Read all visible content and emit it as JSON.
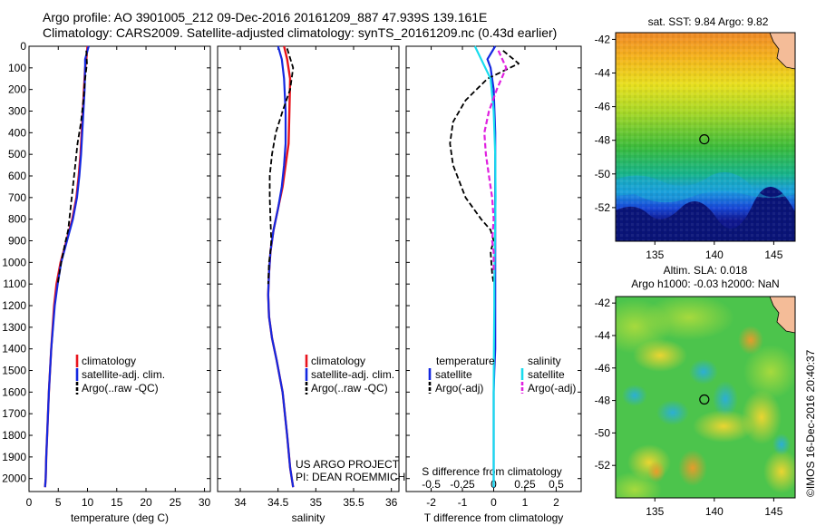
{
  "header": {
    "line1": "Argo profile: AO 3901005_212 09-Dec-2016 20161209_887 47.939S 139.161E",
    "line2": "Climatology: CARS2009. Satellite-adjusted climatology: synTS_20161209.nc (0.43d earlier)"
  },
  "credits": {
    "line1": "US ARGO PROJECT",
    "line2": "PI: DEAN ROEMMICH"
  },
  "stamp": "©IMOS 16-Dec-2016 20:40:37",
  "colors": {
    "climatology": "#e8141d",
    "satellite": "#1428e0",
    "argo": "#000000",
    "cyan": "#18dcee",
    "magenta": "#e020e0"
  },
  "chart_data": [
    {
      "type": "line",
      "xlabel": "temperature (deg C)",
      "ylabel": "",
      "xlim": [
        0,
        31
      ],
      "ylim": [
        2060,
        0
      ],
      "xticks": [
        0,
        5,
        10,
        15,
        20,
        25,
        30
      ],
      "yticks": [
        0,
        100,
        200,
        300,
        400,
        500,
        600,
        700,
        800,
        900,
        1000,
        1100,
        1200,
        1300,
        1400,
        1500,
        1600,
        1700,
        1800,
        1900,
        2000
      ],
      "legend": [
        "climatology",
        "satellite-adj. clim.",
        "Argo(..raw -QC)"
      ],
      "series": [
        {
          "name": "climatology",
          "style": "red",
          "x": [
            10.0,
            9.8,
            9.6,
            9.4,
            9.2,
            9.0,
            8.8,
            8.5,
            8.1,
            7.4,
            6.4,
            5.4,
            4.7,
            4.3,
            3.8,
            3.4,
            3.1,
            2.95,
            2.85,
            2.75
          ],
          "y": [
            0,
            60,
            100,
            200,
            300,
            400,
            500,
            600,
            700,
            800,
            900,
            1000,
            1100,
            1200,
            1400,
            1600,
            1800,
            1900,
            2000,
            2040
          ]
        },
        {
          "name": "satellite-adj. clim.",
          "style": "blue",
          "x": [
            10.2,
            9.6,
            9.6,
            9.5,
            9.3,
            9.1,
            8.9,
            8.6,
            8.2,
            7.5,
            6.5,
            5.5,
            4.9,
            4.4,
            3.8,
            3.4,
            3.1,
            2.95,
            2.85,
            2.75
          ],
          "y": [
            0,
            60,
            100,
            200,
            300,
            400,
            500,
            600,
            700,
            800,
            900,
            1000,
            1100,
            1200,
            1400,
            1600,
            1800,
            1900,
            2000,
            2040
          ]
        },
        {
          "name": "Argo(..raw -QC)",
          "style": "dash",
          "x": [
            9.8,
            9.9,
            9.6,
            9.3,
            8.9,
            8.3,
            7.9,
            7.5,
            7.1,
            6.7,
            6.1,
            5.5,
            4.9
          ],
          "y": [
            20,
            80,
            150,
            250,
            350,
            450,
            550,
            650,
            750,
            850,
            920,
            1000,
            1100
          ]
        }
      ]
    },
    {
      "type": "line",
      "xlabel": "salinity",
      "xlim": [
        33.7,
        36.1
      ],
      "ylim": [
        2060,
        0
      ],
      "xticks": [
        34,
        34.5,
        35,
        35.5,
        36
      ],
      "legend": [
        "climatology",
        "satellite-adj. clim.",
        "Argo(..raw -QC)"
      ],
      "series": [
        {
          "name": "climatology",
          "style": "red",
          "x": [
            34.58,
            34.62,
            34.66,
            34.65,
            34.64,
            34.6,
            34.56,
            34.5,
            34.44,
            34.4,
            34.38,
            34.37,
            34.38,
            34.42,
            34.48,
            34.56,
            34.62,
            34.66,
            34.7
          ],
          "y": [
            0,
            60,
            150,
            300,
            450,
            550,
            650,
            750,
            850,
            950,
            1050,
            1150,
            1250,
            1350,
            1450,
            1600,
            1800,
            1950,
            2040
          ]
        },
        {
          "name": "satellite-adj. clim.",
          "style": "blue",
          "x": [
            34.5,
            34.55,
            34.58,
            34.6,
            34.6,
            34.58,
            34.55,
            34.5,
            34.44,
            34.4,
            34.38,
            34.37,
            34.38,
            34.42,
            34.48,
            34.56,
            34.62,
            34.66,
            34.7
          ],
          "y": [
            0,
            60,
            150,
            300,
            450,
            550,
            650,
            750,
            850,
            950,
            1050,
            1150,
            1250,
            1350,
            1450,
            1600,
            1800,
            1950,
            2040
          ]
        },
        {
          "name": "Argo(..raw -QC)",
          "style": "dash",
          "x": [
            34.62,
            34.7,
            34.66,
            34.56,
            34.47,
            34.42,
            34.39,
            34.39,
            34.4,
            34.41,
            34.4,
            34.38,
            34.37
          ],
          "y": [
            10,
            100,
            200,
            300,
            400,
            500,
            600,
            700,
            800,
            900,
            950,
            1000,
            1100
          ]
        }
      ]
    },
    {
      "type": "line",
      "xlabel": "T difference from climatology",
      "x2label": "S difference from climatology",
      "xlim": [
        -2.8,
        2.8
      ],
      "ylim": [
        2060,
        0
      ],
      "xticks": [
        -2,
        -1,
        0,
        1,
        2
      ],
      "x2ticks": [
        -0.5,
        -0.25,
        0,
        0.25,
        0.5
      ],
      "legend_headers": [
        "temperature",
        "salinity"
      ],
      "legend": [
        "satellite",
        "Argo(-adj)",
        "satellite",
        "Argo(-adj)"
      ],
      "series": [
        {
          "name": "satellite",
          "group": "temperature",
          "style": "blue",
          "x": [
            0.05,
            -0.2,
            -0.1,
            0.0,
            0.05,
            0.05,
            0.05,
            0.05,
            0.05,
            0.05,
            0.05,
            0.05,
            0.05,
            0.02,
            0.0,
            0.0,
            0.0,
            0.0
          ],
          "y": [
            0,
            60,
            100,
            200,
            400,
            600,
            800,
            900,
            1000,
            1100,
            1200,
            1300,
            1400,
            1500,
            1600,
            1800,
            2000,
            2040
          ]
        },
        {
          "name": "Argo(-adj)",
          "group": "temperature",
          "style": "dash",
          "x": [
            0.3,
            0.8,
            -0.2,
            -0.9,
            -1.3,
            -1.4,
            -1.3,
            -0.9,
            -0.4,
            -0.1,
            0.0,
            -0.1,
            -0.05,
            0.0
          ],
          "y": [
            20,
            80,
            150,
            250,
            350,
            450,
            550,
            700,
            800,
            850,
            900,
            950,
            1050,
            1100
          ]
        },
        {
          "name": "satellite",
          "group": "salinity",
          "style": "cyan",
          "x": [
            -0.6,
            -0.4,
            -0.1,
            0.0,
            0.05,
            0.06,
            0.05,
            0.04,
            0.03,
            0.02,
            0.02,
            0.01,
            0.0,
            0.0,
            0.0,
            0.0
          ],
          "y": [
            0,
            60,
            150,
            300,
            500,
            700,
            800,
            900,
            1000,
            1100,
            1200,
            1400,
            1600,
            1800,
            2000,
            2040
          ]
        },
        {
          "name": "Argo(-adj)",
          "group": "salinity",
          "style": "magenta",
          "x": [
            0.15,
            0.4,
            0.1,
            -0.15,
            -0.3,
            -0.25,
            -0.15,
            -0.05,
            0.0,
            -0.05,
            0.0,
            0.0
          ],
          "y": [
            20,
            100,
            200,
            300,
            400,
            500,
            600,
            700,
            800,
            900,
            950,
            1050
          ]
        }
      ]
    },
    {
      "type": "heatmap",
      "title": "sat. SST: 9.84  Argo: 9.82",
      "xticks": [
        135,
        140,
        145
      ],
      "yticks": [
        -42,
        -44,
        -46,
        -48,
        -50,
        -52
      ],
      "xlim": [
        131.7,
        146.8
      ],
      "ylim": [
        -54,
        -41.6
      ],
      "marker": {
        "x": 139.16,
        "y": -47.94
      }
    },
    {
      "type": "heatmap",
      "title_line1": "Altim. SLA: 0.018",
      "title_line2": "Argo h1000: -0.03 h2000: NaN",
      "xticks": [
        135,
        140,
        145
      ],
      "yticks": [
        -42,
        -44,
        -46,
        -48,
        -50,
        -52
      ],
      "xlim": [
        131.7,
        146.8
      ],
      "ylim": [
        -54,
        -41.6
      ],
      "marker": {
        "x": 139.16,
        "y": -47.94
      }
    }
  ]
}
